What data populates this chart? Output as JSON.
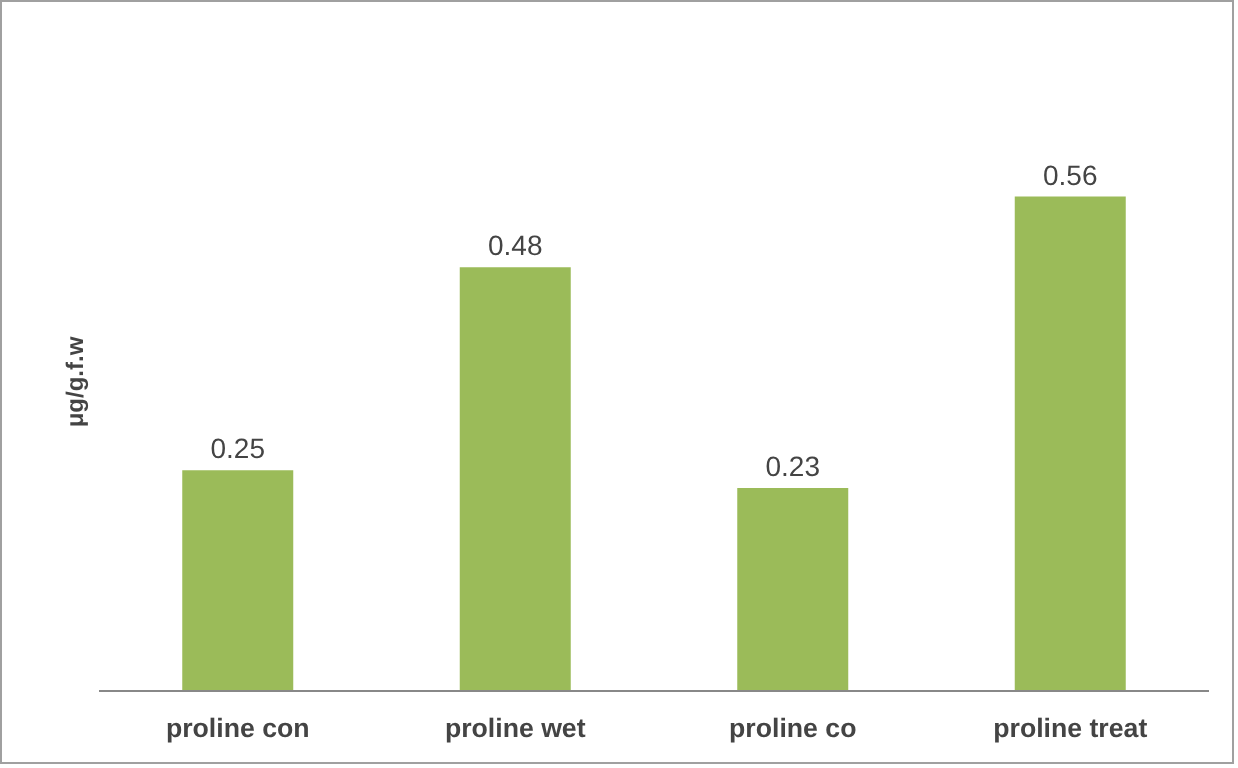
{
  "chart_data": {
    "type": "bar",
    "ylabel": "μg/g.f.w",
    "categories": [
      "proline con",
      "proline wet",
      "proline co",
      "proline treat"
    ],
    "values": [
      0.25,
      0.48,
      0.23,
      0.56
    ],
    "color": "#9bbb59",
    "data_labels": true,
    "grid": false
  }
}
